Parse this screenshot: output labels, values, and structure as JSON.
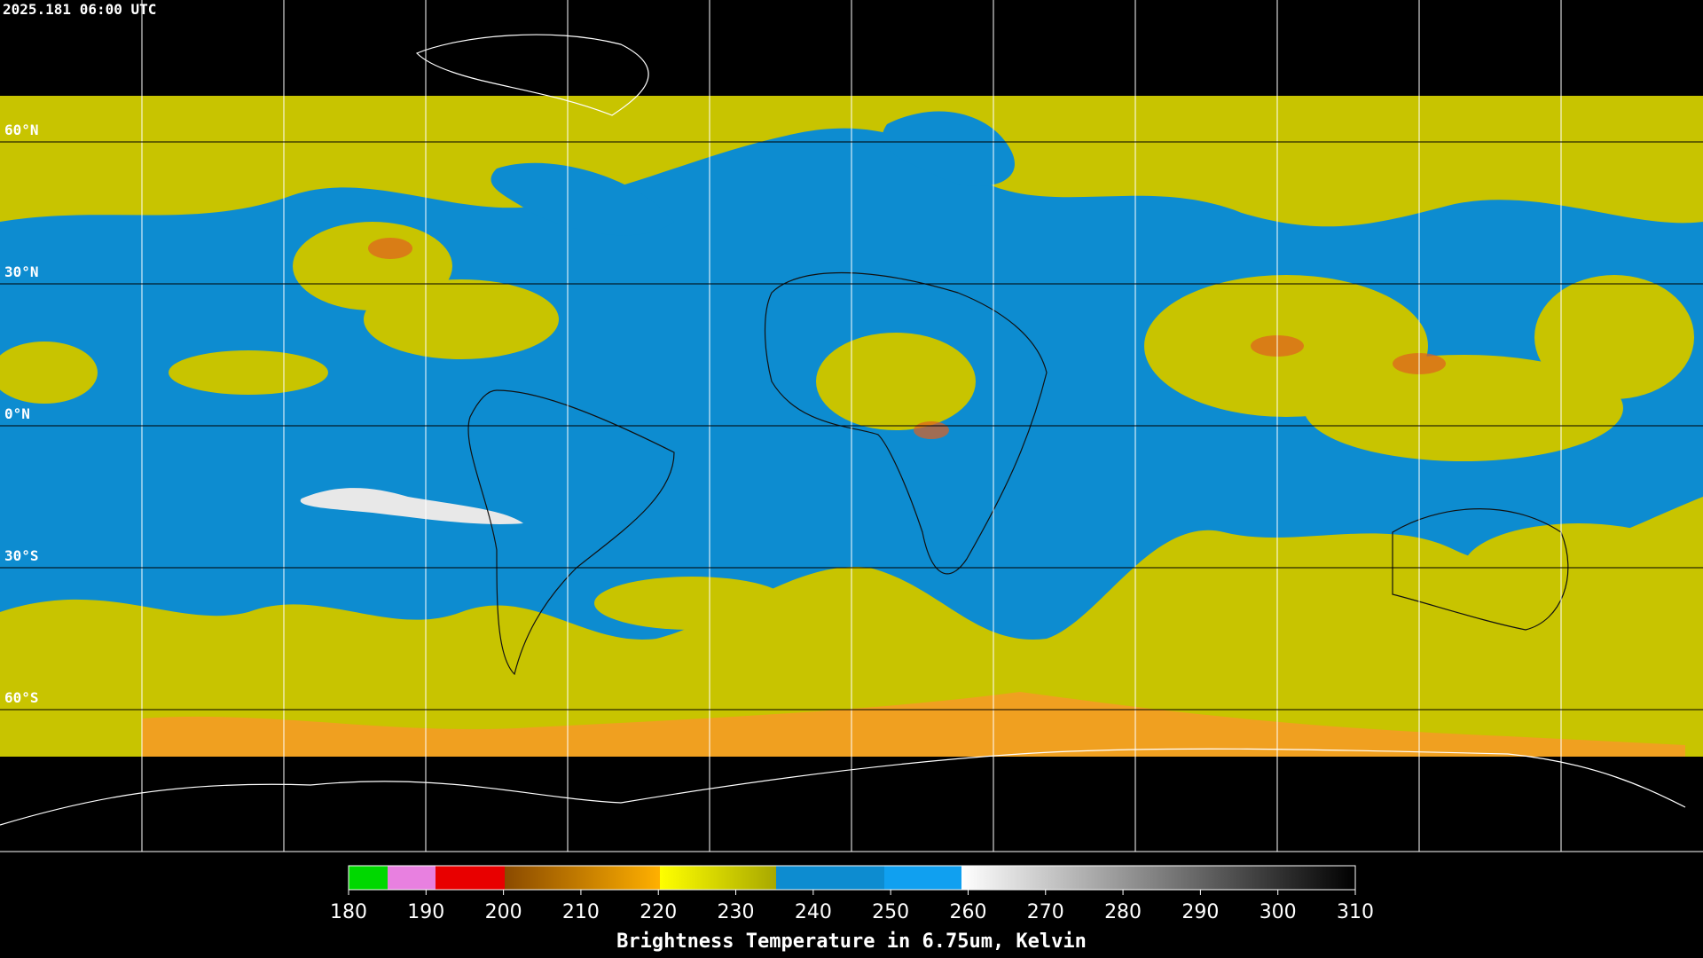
{
  "header": {
    "timestamp": "2025.181 06:00 UTC"
  },
  "map": {
    "latitude_labels": [
      "60°N",
      "30°N",
      "0°N",
      "30°S",
      "60°S"
    ]
  },
  "colorbar": {
    "ticks": [
      180,
      190,
      200,
      210,
      220,
      230,
      240,
      250,
      260,
      270,
      280,
      290,
      300,
      310
    ],
    "title": "Brightness Temperature in 6.75um, Kelvin"
  }
}
